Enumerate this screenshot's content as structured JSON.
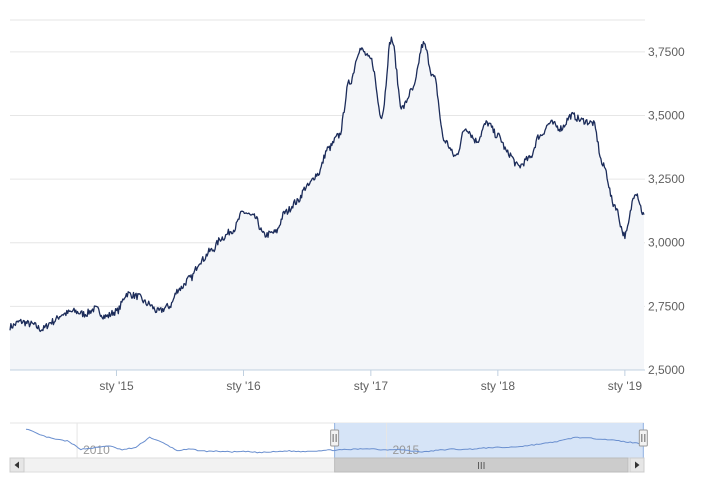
{
  "chart_data": {
    "type": "line",
    "title": "",
    "xlabel": "",
    "ylabel": "",
    "colors": {
      "line": "#1c2c5a",
      "area_fill": "#f4f6f9",
      "grid": "#e6e6e6",
      "axis_text": "#606060",
      "navigator_line": "#6a8fcf",
      "navigator_mask": "#d6e4f7",
      "navigator_mask_border": "#8fb0e0",
      "scrollbar_bg": "#f2f2f2",
      "scrollbar_thumb": "#cccccc"
    },
    "grid": true,
    "y_axis_side": "right",
    "ylim": [
      2.5,
      3.875
    ],
    "xlim": [
      "2014-03-01",
      "2019-02-25"
    ],
    "y_ticks": [
      {
        "value": 2.5,
        "label": "2,5000"
      },
      {
        "value": 2.75,
        "label": "2,7500"
      },
      {
        "value": 3.0,
        "label": "3,0000"
      },
      {
        "value": 3.25,
        "label": "3,2500"
      },
      {
        "value": 3.5,
        "label": "3,5000"
      },
      {
        "value": 3.75,
        "label": "3,7500"
      }
    ],
    "x_ticks": [
      {
        "value": "2015-01-01",
        "label": "sty '15"
      },
      {
        "value": "2016-01-01",
        "label": "sty '16"
      },
      {
        "value": "2017-01-01",
        "label": "sty '17"
      },
      {
        "value": "2018-01-01",
        "label": "sty '18"
      },
      {
        "value": "2019-01-01",
        "label": "sty '19"
      }
    ],
    "series": [
      {
        "x": [
          "2014-03-01",
          "2014-04-01",
          "2014-05-01",
          "2014-06-01",
          "2014-07-01",
          "2014-08-01",
          "2014-09-01",
          "2014-10-01",
          "2014-11-01",
          "2014-12-01",
          "2015-01-01",
          "2015-02-01",
          "2015-03-01",
          "2015-04-01",
          "2015-05-01",
          "2015-06-01",
          "2015-07-01",
          "2015-08-01",
          "2015-09-01",
          "2015-10-01",
          "2015-11-01",
          "2015-12-01",
          "2016-01-01",
          "2016-02-01",
          "2016-03-01",
          "2016-04-01",
          "2016-05-01",
          "2016-06-01",
          "2016-07-01",
          "2016-08-01",
          "2016-09-01",
          "2016-10-01",
          "2016-11-01",
          "2016-12-01",
          "2017-01-01",
          "2017-02-01",
          "2017-03-01",
          "2017-04-01",
          "2017-05-01",
          "2017-06-01",
          "2017-07-01",
          "2017-08-01",
          "2017-09-01",
          "2017-10-01",
          "2017-11-01",
          "2017-12-01",
          "2018-01-01",
          "2018-02-01",
          "2018-03-01",
          "2018-04-01",
          "2018-05-01",
          "2018-06-01",
          "2018-07-01",
          "2018-08-01",
          "2018-09-01",
          "2018-10-01",
          "2018-11-01",
          "2018-12-01",
          "2019-01-01",
          "2019-02-01",
          "2019-02-25"
        ],
        "values": [
          2.67,
          2.69,
          2.68,
          2.66,
          2.69,
          2.72,
          2.73,
          2.72,
          2.74,
          2.71,
          2.73,
          2.8,
          2.79,
          2.76,
          2.73,
          2.75,
          2.82,
          2.86,
          2.93,
          2.97,
          3.02,
          3.05,
          3.12,
          3.1,
          3.03,
          3.04,
          3.12,
          3.16,
          3.22,
          3.27,
          3.37,
          3.42,
          3.63,
          3.76,
          3.72,
          3.5,
          3.8,
          3.53,
          3.6,
          3.78,
          3.65,
          3.4,
          3.34,
          3.45,
          3.4,
          3.47,
          3.42,
          3.35,
          3.3,
          3.33,
          3.42,
          3.47,
          3.45,
          3.5,
          3.48,
          3.47,
          3.3,
          3.15,
          3.03,
          3.2,
          3.11
        ]
      }
    ],
    "navigator": {
      "year_labels": [
        {
          "value": "2010",
          "label": "2010"
        },
        {
          "value": "2015",
          "label": "2015"
        }
      ],
      "values": [
        3.8,
        3.62,
        3.5,
        3.44,
        3.2,
        3.24,
        3.3,
        3.18,
        3.25,
        3.55,
        3.38,
        3.16,
        3.2,
        3.14,
        3.14,
        3.12,
        3.13,
        3.1,
        3.12,
        3.15,
        3.13,
        3.15,
        3.17,
        3.18,
        3.2,
        3.22,
        3.18,
        3.2,
        3.15,
        3.12,
        3.17,
        3.2,
        3.19,
        3.22,
        3.25,
        3.25,
        3.28,
        3.33,
        3.38,
        3.45,
        3.55,
        3.52,
        3.5,
        3.45,
        3.4,
        3.35
      ],
      "selection_range": [
        "2014-03-01",
        "2019-02-25"
      ],
      "scrollbar_grip": "III"
    }
  }
}
